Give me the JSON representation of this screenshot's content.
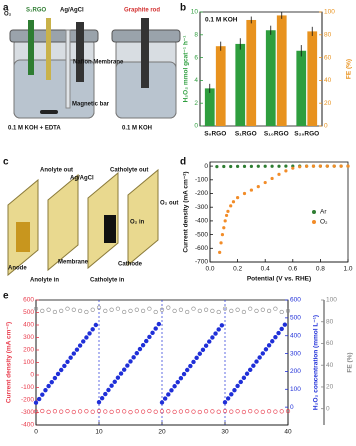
{
  "panel_labels": [
    "a",
    "b",
    "c",
    "d",
    "e"
  ],
  "diagram_a": {
    "labels": [
      "O₂",
      "S₁RGO",
      "Ag/AgCl",
      "Graphite rod",
      "Nafion Membrane",
      "Magnetic bar",
      "0.1 M KOH + EDTA",
      "0.1 M KOH"
    ]
  },
  "diagram_c": {
    "labels": [
      "Anolyte out",
      "Ag/AgCl",
      "Catholyte out",
      "O₂ out",
      "O₂ in",
      "Anode",
      "Membrane",
      "Cathode",
      "Anolyte in",
      "Catholyte in"
    ]
  },
  "chart_data": [
    {
      "type": "bar",
      "annotation": "0.1 M KOH",
      "categories": [
        "S₀RGO",
        "S₁RGO",
        "S₁₀RGO",
        "S₂₀RGO"
      ],
      "ylabel": "H₂O₂ mmol gcat⁻¹ h⁻¹",
      "y2label": "FE (%)",
      "ylim": [
        0,
        10
      ],
      "yticks": [
        0,
        2,
        4,
        6,
        8,
        10
      ],
      "y2lim": [
        0,
        100
      ],
      "y2ticks": [
        0,
        20,
        40,
        60,
        80,
        100
      ],
      "series": [
        {
          "color": "#2e9e3e",
          "values": [
            3.3,
            7.2,
            8.4,
            6.6
          ],
          "errors": [
            0.4,
            0.5,
            0.4,
            0.5
          ]
        },
        {
          "color": "#e8921e",
          "axis": "y2",
          "values": [
            70,
            93,
            97,
            83
          ],
          "errors": [
            4,
            3,
            3,
            4
          ]
        }
      ]
    },
    {
      "type": "scatter",
      "xlabel": "Potential (V vs. RHE)",
      "ylabel": "Current density (mA cm⁻²)",
      "xlim": [
        0,
        1
      ],
      "xticks": [
        {
          "value": 0,
          "label": "0.0"
        },
        0.2,
        0.4,
        0.6,
        0.8,
        {
          "value": 1,
          "label": "1.0"
        }
      ],
      "ylim": [
        -700,
        30
      ],
      "yticks": [
        -700,
        -600,
        -500,
        -400,
        -300,
        -200,
        -100,
        0
      ],
      "legend": "right",
      "series": [
        {
          "name": "Ar",
          "color": "#2e7d32",
          "x": [
            0.05,
            0.1,
            0.15,
            0.2,
            0.25,
            0.3,
            0.35,
            0.4,
            0.45,
            0.5,
            0.55,
            0.6,
            0.65,
            0.7,
            0.75,
            0.8,
            0.85,
            0.9,
            0.95,
            1.0
          ],
          "values": [
            -4,
            -3,
            -3,
            -2,
            -2,
            -2,
            -1,
            -1,
            -1,
            -1,
            0,
            0,
            0,
            0,
            0,
            0,
            0,
            0,
            0,
            0
          ]
        },
        {
          "name": "O₂",
          "color": "#f28c28",
          "x": [
            0.07,
            0.08,
            0.09,
            0.1,
            0.11,
            0.12,
            0.13,
            0.15,
            0.17,
            0.2,
            0.25,
            0.3,
            0.35,
            0.4,
            0.45,
            0.5,
            0.55,
            0.6,
            0.65,
            0.7,
            0.75,
            0.8,
            0.85,
            0.9,
            0.95,
            1.0
          ],
          "values": [
            -630,
            -560,
            -500,
            -450,
            -400,
            -360,
            -330,
            -290,
            -260,
            -230,
            -200,
            -175,
            -150,
            -120,
            -90,
            -60,
            -35,
            -15,
            -5,
            -1,
            0,
            0,
            0,
            0,
            0,
            0
          ]
        }
      ]
    },
    {
      "type": "scatter",
      "xlim": [
        0,
        40
      ],
      "xticks": [
        0,
        10,
        20,
        30,
        40
      ],
      "vlines": [
        10,
        20,
        30
      ],
      "ylabel": "Current density (mA cm⁻²)",
      "ylim": [
        -400,
        600
      ],
      "yticks": [
        -400,
        -300,
        -200,
        -100,
        0,
        100,
        200,
        300,
        400,
        500,
        600
      ],
      "y2label": "H₂O₂ concentration (mmol L⁻¹)",
      "y2lim": [
        -100,
        600
      ],
      "y2ticks": [
        0,
        100,
        200,
        300,
        400,
        500,
        600
      ],
      "y3label": "FE (%)",
      "y3lim": [
        -15,
        100
      ],
      "y3ticks": [
        0,
        20,
        40,
        60,
        80,
        100
      ],
      "series": [
        {
          "color": "#e8394a",
          "marker": "open",
          "x": [
            0,
            1,
            2,
            3,
            4,
            5,
            6,
            7,
            8,
            9,
            10,
            11,
            12,
            13,
            14,
            15,
            16,
            17,
            18,
            19,
            20,
            21,
            22,
            23,
            24,
            25,
            26,
            27,
            28,
            29,
            30,
            31,
            32,
            33,
            34,
            35,
            36,
            37,
            38,
            39,
            40
          ],
          "values": [
            -292,
            -288,
            -295,
            -290,
            -293,
            -289,
            -296,
            -291,
            -290,
            -294,
            -288,
            -292,
            -295,
            -289,
            -291,
            -297,
            -290,
            -293,
            -288,
            -294,
            -291,
            -290,
            -295,
            -292,
            -289,
            -293,
            -296,
            -290,
            -291,
            -294,
            -288,
            -293,
            -290,
            -296,
            -289,
            -292,
            -295,
            -290,
            -293,
            -291,
            -289
          ]
        },
        {
          "color": "#1f2fd8",
          "axis": "y2",
          "x": [
            0,
            0.5,
            1,
            1.5,
            2,
            2.5,
            3,
            3.5,
            4,
            4.5,
            5,
            5.5,
            6,
            6.5,
            7,
            7.5,
            8,
            8.5,
            9,
            9.5,
            10,
            10.5,
            11,
            11.5,
            12,
            12.5,
            13,
            13.5,
            14,
            14.5,
            15,
            15.5,
            16,
            16.5,
            17,
            17.5,
            18,
            18.5,
            19,
            19.5,
            20,
            20.5,
            21,
            21.5,
            22,
            22.5,
            23,
            23.5,
            24,
            24.5,
            25,
            25.5,
            26,
            26.5,
            27,
            27.5,
            28,
            28.5,
            29,
            29.5,
            30,
            30.5,
            31,
            31.5,
            32,
            32.5,
            33,
            33.5,
            34,
            34.5,
            35,
            35.5,
            36,
            36.5,
            37,
            37.5,
            38,
            38.5,
            39,
            39.5
          ],
          "values": [
            25,
            45,
            70,
            95,
            118,
            140,
            163,
            186,
            208,
            231,
            254,
            277,
            300,
            322,
            345,
            368,
            390,
            413,
            436,
            460,
            28,
            50,
            73,
            96,
            120,
            142,
            165,
            188,
            210,
            233,
            256,
            279,
            302,
            325,
            347,
            370,
            393,
            416,
            440,
            465,
            26,
            48,
            71,
            94,
            117,
            140,
            162,
            185,
            208,
            230,
            253,
            276,
            299,
            321,
            344,
            367,
            390,
            412,
            435,
            458,
            27,
            49,
            72,
            95,
            119,
            141,
            164,
            187,
            209,
            232,
            255,
            278,
            301,
            324,
            346,
            369,
            392,
            415,
            438,
            462
          ]
        },
        {
          "color": "#888888",
          "axis": "y3",
          "marker": "open",
          "x": [
            0,
            1,
            2,
            3,
            4,
            5,
            6,
            7,
            8,
            9,
            10,
            11,
            12,
            13,
            14,
            15,
            16,
            17,
            18,
            19,
            20,
            21,
            22,
            23,
            24,
            25,
            26,
            27,
            28,
            29,
            30,
            31,
            32,
            33,
            34,
            35,
            36,
            37,
            38,
            39,
            40
          ],
          "values": [
            92,
            90,
            91,
            89,
            90,
            92,
            91,
            90,
            89,
            91,
            93,
            90,
            91,
            92,
            89,
            90,
            91,
            90,
            92,
            89,
            91,
            93,
            90,
            91,
            89,
            92,
            90,
            91,
            90,
            89,
            92,
            90,
            91,
            89,
            92,
            90,
            91,
            90,
            92,
            89,
            90
          ]
        }
      ]
    }
  ]
}
